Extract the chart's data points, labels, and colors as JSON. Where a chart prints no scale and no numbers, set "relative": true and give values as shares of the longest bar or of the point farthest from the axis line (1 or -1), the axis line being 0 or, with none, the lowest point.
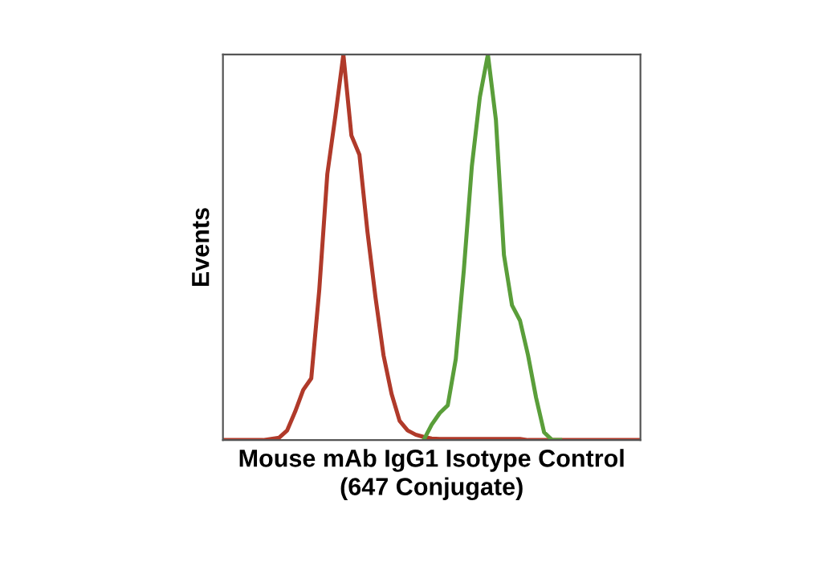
{
  "chart_data": {
    "type": "line",
    "relative": true,
    "marker": "none",
    "line_style": "solid",
    "xlabel": "Mouse mAb IgG1 Isotype Control\n(647 Conjugate)",
    "ylabel": "Events",
    "categories": [
      null,
      null,
      null,
      null,
      null,
      null,
      null,
      null,
      null,
      null,
      null,
      null,
      null,
      null,
      null,
      null,
      null,
      null,
      null,
      null,
      null,
      null,
      null,
      null,
      null,
      null,
      null,
      null,
      null,
      null,
      null,
      null,
      null,
      null,
      null,
      null,
      null,
      null,
      null,
      null,
      null,
      null,
      null,
      null,
      null,
      null,
      null,
      null,
      null,
      null,
      null,
      null,
      null
    ],
    "series": [
      {
        "color": "#b03a2a",
        "values": [
          0,
          0,
          0,
          0,
          0,
          0,
          0.003,
          0.006,
          0.025,
          0.074,
          0.13,
          0.16,
          0.39,
          0.69,
          0.84,
          1,
          0.79,
          0.74,
          0.54,
          0.37,
          0.22,
          0.12,
          0.05,
          0.025,
          0.014,
          0.008,
          0.004,
          0.003,
          0.003,
          0.003,
          0.003,
          0.003,
          0.003,
          0.003,
          0.003,
          0.003,
          0.003,
          0.003,
          0,
          0,
          0,
          0,
          0,
          0,
          0,
          0,
          0,
          0,
          0,
          0,
          0,
          0,
          0
        ]
      },
      {
        "color": "#5a9e3a",
        "values": [
          null,
          null,
          null,
          null,
          null,
          null,
          null,
          null,
          null,
          null,
          null,
          null,
          null,
          null,
          null,
          null,
          null,
          null,
          null,
          null,
          null,
          null,
          null,
          null,
          null,
          0,
          0.04,
          0.07,
          0.09,
          0.21,
          0.44,
          0.71,
          0.89,
          1,
          0.83,
          0.48,
          0.35,
          0.31,
          0.22,
          0.11,
          0.02,
          0,
          0,
          null,
          null,
          null,
          null,
          null,
          null,
          null,
          null,
          null,
          null
        ]
      }
    ]
  }
}
